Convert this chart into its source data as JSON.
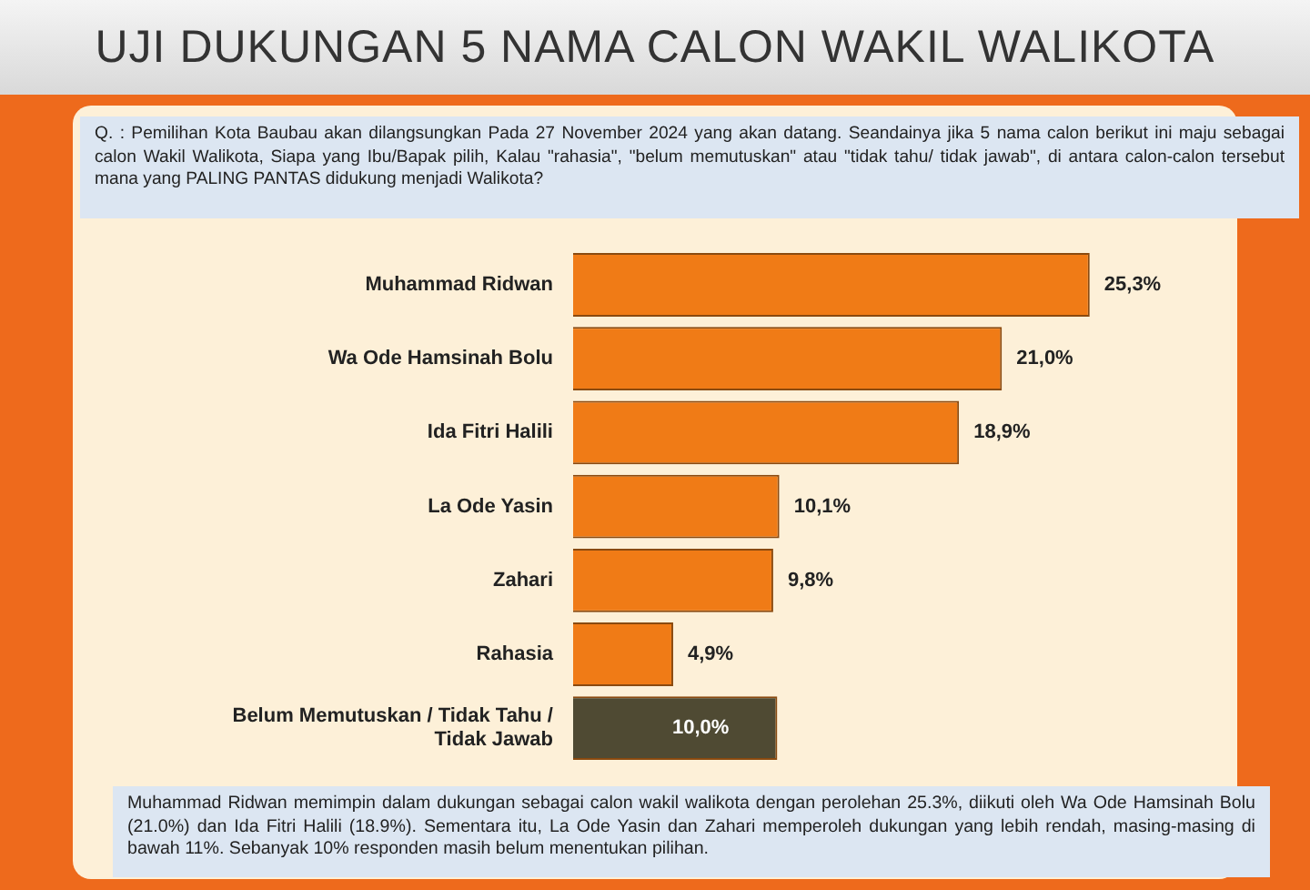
{
  "chart_data": {
    "type": "bar",
    "orientation": "horizontal",
    "title": "UJI DUKUNGAN 5 NAMA CALON WAKIL WALIKOTA",
    "categories": [
      "Muhammad Ridwan",
      "Wa Ode Hamsinah Bolu",
      "Ida Fitri Halili",
      "La Ode Yasin",
      "Zahari",
      "Rahasia",
      "Belum Memutuskan / Tidak Tahu / Tidak Jawab"
    ],
    "values": [
      25.3,
      21.0,
      18.9,
      10.1,
      9.8,
      4.9,
      10.0
    ],
    "value_labels": [
      "25,3%",
      "21,0%",
      "18,9%",
      "10,1%",
      "9,8%",
      "4,9%",
      "10,0%"
    ],
    "colors": [
      "#f07b16",
      "#f07b16",
      "#f07b16",
      "#f07b16",
      "#f07b16",
      "#f07b16",
      "#4f4a33"
    ],
    "legend": false,
    "annotations": [
      "Q. : Pemilihan Kota Baubau akan dilangsungkan Pada 27 November 2024 yang akan datang. Seandainya jika 5  nama calon berikut ini maju sebagai calon Wakil Walikota, Siapa yang Ibu/Bapak pilih, Kalau \"rahasia\", \"belum memutuskan\" atau \"tidak tahu/ tidak jawab\", di antara calon-calon tersebut mana yang PALING PANTAS didukung menjadi Walikota?",
      "Muhammad Ridwan memimpin dalam dukungan sebagai calon wakil walikota dengan perolehan 25.3%, diikuti oleh Wa Ode Hamsinah Bolu (21.0%) dan Ida Fitri Halili (18.9%). Sementara itu, La Ode Yasin dan Zahari memperoleh dukungan yang lebih rendah, masing-masing di bawah 11%. Sebanyak 10% responden masih belum menentukan pilihan."
    ]
  }
}
